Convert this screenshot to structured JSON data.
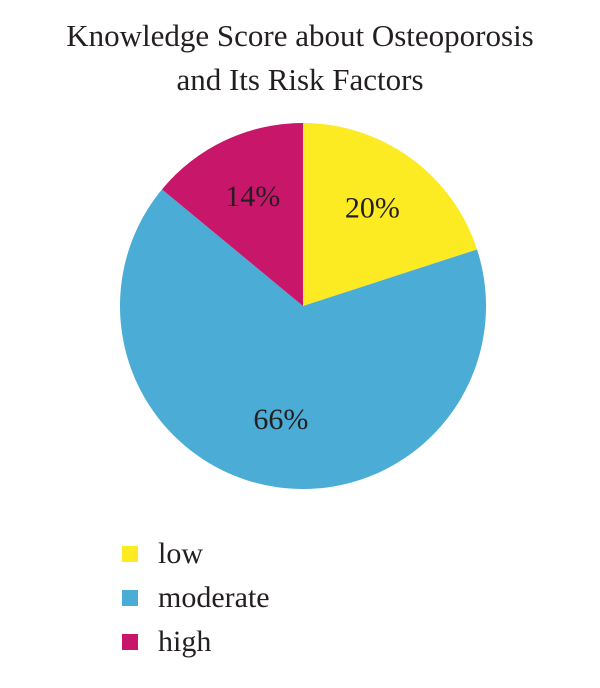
{
  "chart_data": {
    "type": "pie",
    "title_lines": [
      "Knowledge Score about Osteoporosis",
      "and Its Risk Factors"
    ],
    "categories": [
      "low",
      "moderate",
      "high"
    ],
    "values": [
      20,
      66,
      14
    ],
    "labels": [
      "20%",
      "66%",
      "14%"
    ],
    "colors": [
      "#fcea23",
      "#4bacd6",
      "#c8166a"
    ],
    "legend": {
      "placement": "bottom-left",
      "items": [
        {
          "label": "low",
          "color": "#fcea23"
        },
        {
          "label": "moderate",
          "color": "#4bacd6"
        },
        {
          "label": "high",
          "color": "#c8166a"
        }
      ]
    }
  }
}
